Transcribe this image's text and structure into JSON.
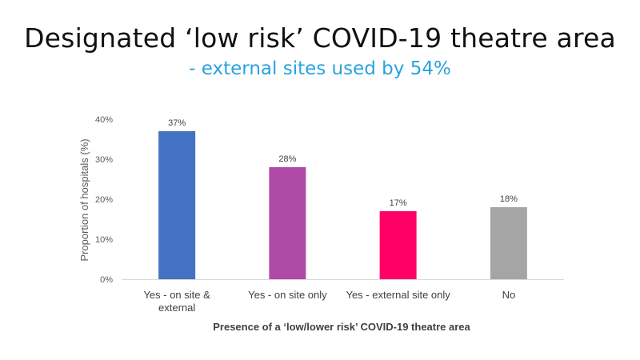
{
  "chart_data": {
    "type": "bar",
    "title": "Designated ‘low risk’ COVID-19 theatre area",
    "subtitle": "- external sites used by 54%",
    "categories": [
      [
        "Yes - on site &",
        "external"
      ],
      [
        "Yes - on site only"
      ],
      [
        "Yes - external site only"
      ],
      [
        "No"
      ]
    ],
    "values": [
      37,
      28,
      17,
      18
    ],
    "data_labels": [
      "37%",
      "28%",
      "17%",
      "18%"
    ],
    "colors": [
      "#4472c4",
      "#b04aa9",
      "#ff0066",
      "#a5a5a5"
    ],
    "xlabel": "Presence of a ‘low/lower risk’ COVID-19 theatre area",
    "ylabel": "Proportion of hospitals (%)",
    "ylim": [
      0,
      40
    ],
    "yticks": [
      0,
      10,
      20,
      30,
      40
    ],
    "ytick_labels": [
      "0%",
      "10%",
      "20%",
      "30%",
      "40%"
    ],
    "grid": false,
    "legend": "none"
  }
}
